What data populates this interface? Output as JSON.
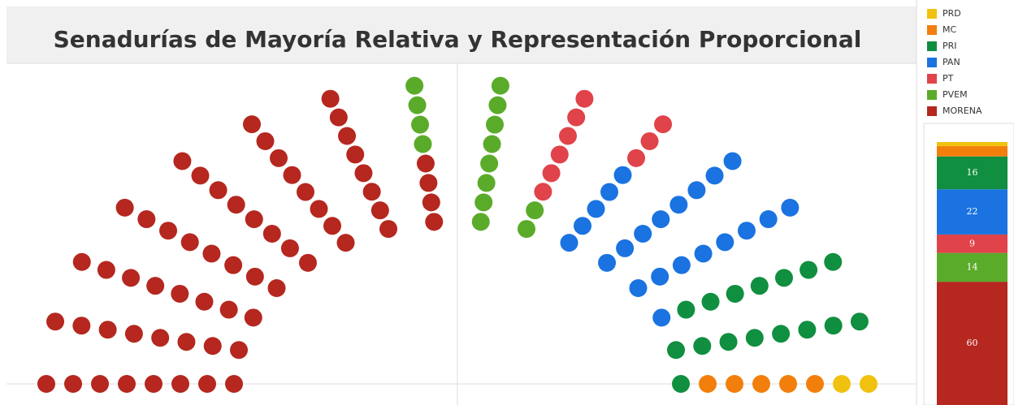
{
  "chart_data": {
    "type": "parliament",
    "title": "Senadurías de Mayoría Relativa y Representación Proporcional",
    "series": [
      {
        "name": "MORENA",
        "color": "#b5271f",
        "values": [
          60
        ]
      },
      {
        "name": "PVEM",
        "color": "#5aab2a",
        "values": [
          14
        ]
      },
      {
        "name": "PT",
        "color": "#e0434a",
        "values": [
          9
        ]
      },
      {
        "name": "PAN",
        "color": "#1a73e0",
        "values": [
          22
        ]
      },
      {
        "name": "PRI",
        "color": "#0f8f3f",
        "values": [
          16
        ]
      },
      {
        "name": "MC",
        "color": "#f27f0c",
        "values": [
          5
        ]
      },
      {
        "name": "PRD",
        "color": "#f0c20f",
        "values": [
          2
        ]
      }
    ]
  }
}
